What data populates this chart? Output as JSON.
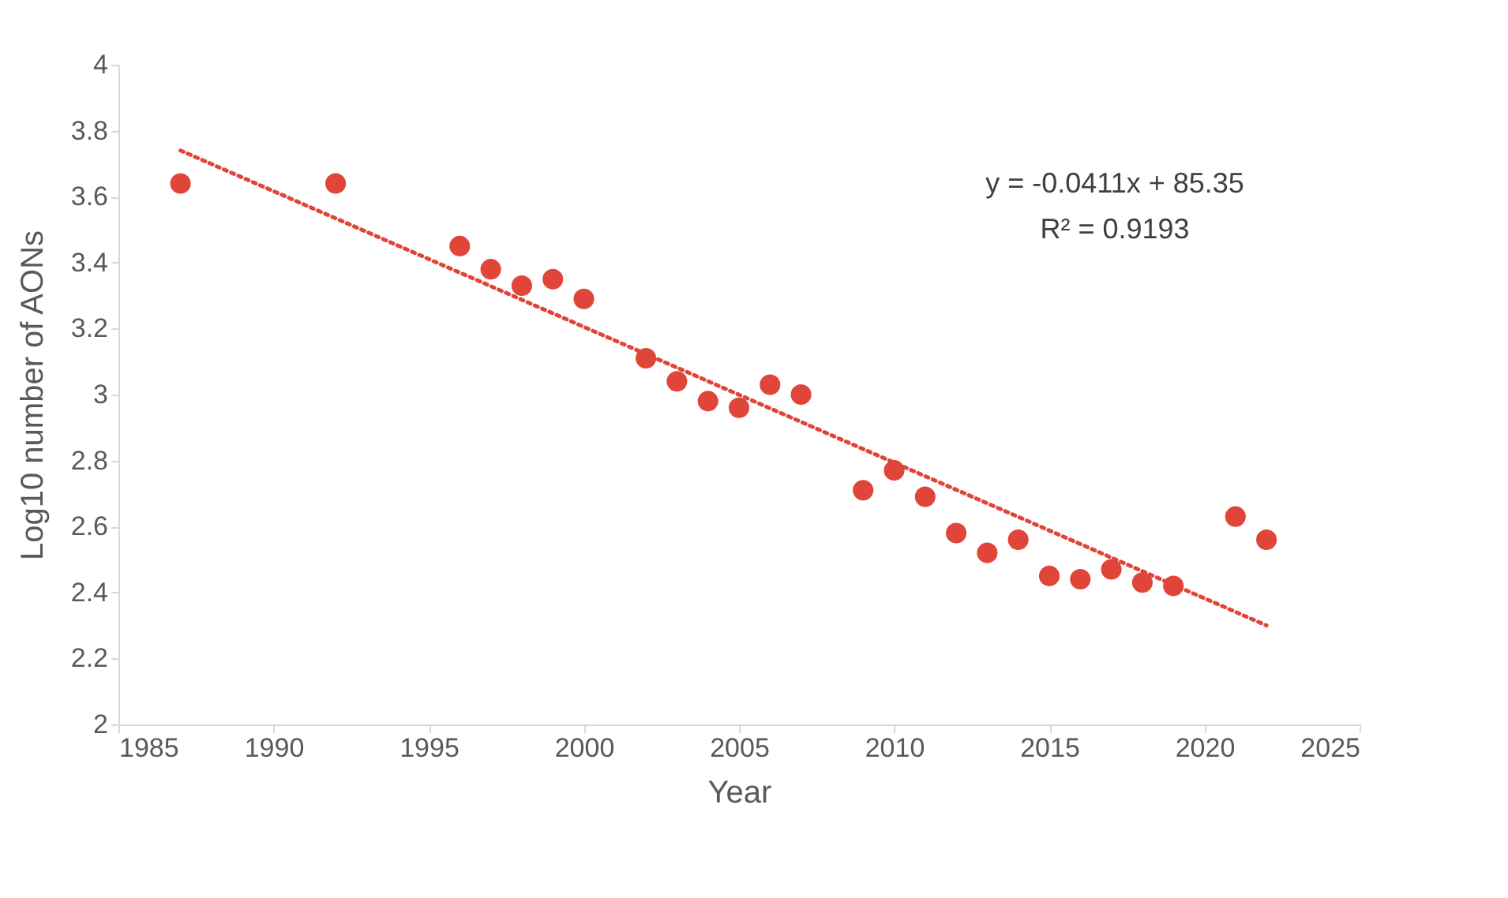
{
  "chart_data": {
    "type": "scatter",
    "xlabel": "Year",
    "ylabel": "Log10 number of AONs",
    "x": [
      1987,
      1992,
      1996,
      1997,
      1998,
      1999,
      2000,
      2002,
      2003,
      2004,
      2005,
      2006,
      2007,
      2009,
      2010,
      2011,
      2012,
      2013,
      2014,
      2015,
      2016,
      2017,
      2018,
      2019,
      2021,
      2022
    ],
    "series": [
      {
        "color": "#e0453a",
        "marker": "circle",
        "values": [
          3.64,
          3.64,
          3.45,
          3.38,
          3.33,
          3.35,
          3.29,
          3.11,
          3.04,
          2.98,
          2.96,
          3.03,
          3.0,
          2.71,
          2.77,
          2.69,
          2.58,
          2.52,
          2.56,
          2.45,
          2.44,
          2.47,
          2.43,
          2.42,
          2.63,
          2.56
        ]
      },
      {
        "type": "line",
        "color": "#e0453a",
        "line_style": "dotted",
        "x": [
          1987,
          2022
        ],
        "values": [
          3.74,
          2.3
        ]
      }
    ],
    "xlim": [
      1985,
      2025
    ],
    "xticks": [
      1985,
      1990,
      1995,
      2000,
      2005,
      2010,
      2015,
      2020,
      2025
    ],
    "ylim": [
      2,
      4
    ],
    "yticks": [
      2,
      2.2,
      2.4,
      2.6,
      2.8,
      3,
      3.2,
      3.4,
      3.6,
      3.8,
      4
    ],
    "grid": false,
    "annotations": [
      "y = -0.0411x + 85.35",
      "R² = 0.9193"
    ]
  }
}
